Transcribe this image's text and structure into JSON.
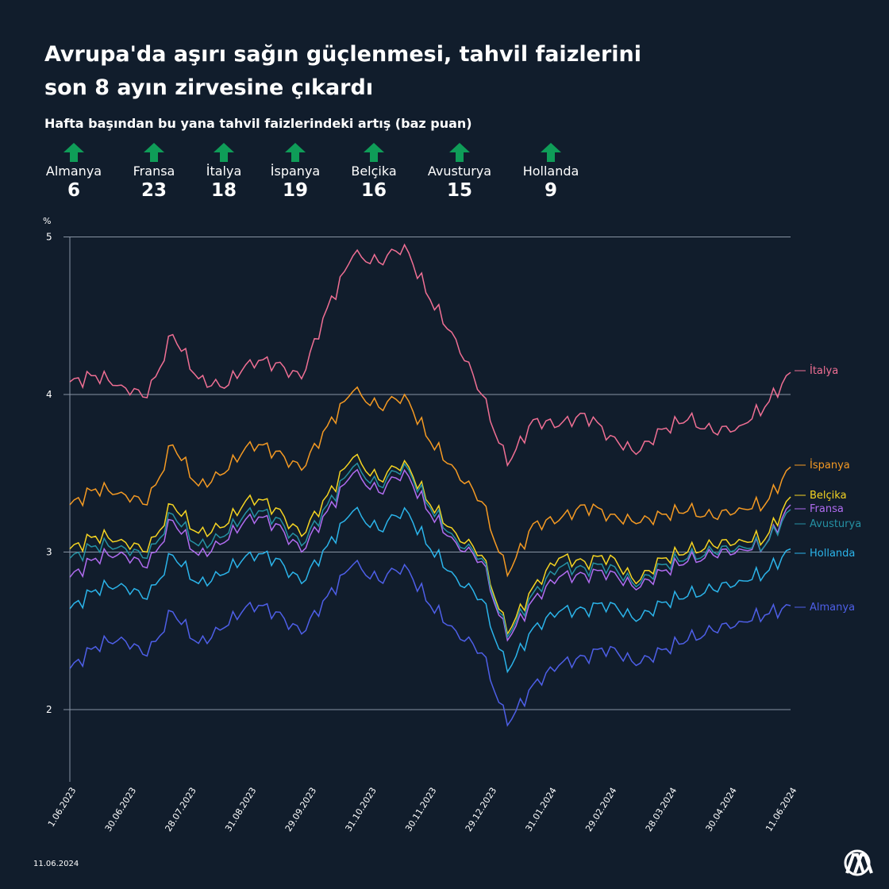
{
  "header": {
    "title_line1": "Avrupa'da aşırı sağın güçlenmesi, tahvil faizlerini",
    "title_line2": "son 8 ayın zirvesine çıkardı",
    "subtitle": "Hafta başından bu yana tahvil faizlerindeki artış (baz puan)"
  },
  "stats": [
    {
      "country": "Almanya",
      "value": "6"
    },
    {
      "country": "Fransa",
      "value": "23"
    },
    {
      "country": "İtalya",
      "value": "18"
    },
    {
      "country": "İspanya",
      "value": "19"
    },
    {
      "country": "Belçika",
      "value": "16"
    },
    {
      "country": "Avusturya",
      "value": "15"
    },
    {
      "country": "Hollanda",
      "value": "9"
    }
  ],
  "colors": {
    "background": "#111d2c",
    "arrow": "#0f9d58",
    "grid": "#8894a3"
  },
  "footer": {
    "date": "11.06.2024",
    "logo_text": "AA"
  },
  "chart_data": {
    "type": "line",
    "title": "Hafta başından bu yana tahvil faizlerindeki artış (baz puan)",
    "ylabel": "%",
    "ylim": [
      1.55,
      5.0
    ],
    "yticks": [
      "2",
      "3",
      "4",
      "5"
    ],
    "grid": true,
    "legend": "right, at line ends",
    "x_tick_labels": [
      "1.06.2023",
      "30.06.2023",
      "28.07.2023",
      "31.08.2023",
      "29.09.2023",
      "31.10.2023",
      "30.11.2023",
      "29.12.2023",
      "31.01.2024",
      "29.02.2024",
      "28.03.2024",
      "30.04.2024",
      "11.06.2024"
    ],
    "series": [
      {
        "name": "İtalya",
        "color": "#f06f94",
        "values": [
          4.08,
          4.12,
          4.06,
          3.98,
          4.38,
          4.1,
          4.04,
          4.22,
          4.2,
          4.1,
          4.55,
          4.88,
          4.84,
          4.95,
          4.6,
          4.35,
          4.0,
          3.55,
          3.84,
          3.8,
          3.88,
          3.74,
          3.62,
          3.78,
          3.84,
          3.76,
          3.8,
          3.92,
          4.14
        ]
      },
      {
        "name": "İspanya",
        "color": "#f59a23",
        "values": [
          3.3,
          3.4,
          3.38,
          3.3,
          3.68,
          3.42,
          3.5,
          3.7,
          3.64,
          3.52,
          3.8,
          4.02,
          3.92,
          4.0,
          3.7,
          3.52,
          3.32,
          2.85,
          3.18,
          3.2,
          3.3,
          3.24,
          3.18,
          3.24,
          3.26,
          3.22,
          3.28,
          3.3,
          3.54
        ]
      },
      {
        "name": "Belçika",
        "color": "#f5d422",
        "values": [
          3.02,
          3.1,
          3.08,
          3.0,
          3.3,
          3.12,
          3.16,
          3.36,
          3.28,
          3.1,
          3.36,
          3.6,
          3.46,
          3.58,
          3.3,
          3.12,
          2.98,
          2.48,
          2.78,
          2.96,
          2.94,
          2.98,
          2.8,
          2.96,
          3.0,
          3.04,
          3.08,
          3.08,
          3.35
        ]
      },
      {
        "name": "Fransa",
        "color": "#b06cf0",
        "values": [
          2.84,
          2.96,
          3.0,
          2.9,
          3.2,
          2.98,
          3.06,
          3.24,
          3.18,
          3.0,
          3.26,
          3.5,
          3.38,
          3.52,
          3.24,
          3.06,
          2.94,
          2.44,
          2.7,
          2.84,
          2.86,
          2.88,
          2.76,
          2.88,
          2.94,
          2.98,
          3.02,
          3.04,
          3.3
        ]
      },
      {
        "name": "Avusturya",
        "color": "#2591a3",
        "values": [
          2.96,
          3.04,
          3.04,
          2.96,
          3.24,
          3.04,
          3.1,
          3.28,
          3.22,
          3.04,
          3.3,
          3.54,
          3.42,
          3.56,
          3.28,
          3.08,
          2.96,
          2.46,
          2.74,
          2.9,
          2.9,
          2.92,
          2.78,
          2.92,
          2.96,
          3.0,
          3.04,
          3.04,
          3.27
        ]
      },
      {
        "name": "Hollanda",
        "color": "#2bb4ea",
        "values": [
          2.64,
          2.76,
          2.8,
          2.7,
          2.98,
          2.8,
          2.86,
          3.0,
          2.96,
          2.8,
          3.04,
          3.26,
          3.14,
          3.28,
          3.02,
          2.84,
          2.7,
          2.24,
          2.52,
          2.62,
          2.64,
          2.68,
          2.56,
          2.68,
          2.72,
          2.76,
          2.82,
          2.86,
          3.02
        ]
      },
      {
        "name": "Almanya",
        "color": "#4e5fe8",
        "values": [
          2.26,
          2.4,
          2.46,
          2.34,
          2.62,
          2.42,
          2.52,
          2.68,
          2.62,
          2.48,
          2.72,
          2.92,
          2.82,
          2.92,
          2.66,
          2.5,
          2.36,
          1.9,
          2.16,
          2.28,
          2.34,
          2.4,
          2.28,
          2.38,
          2.44,
          2.5,
          2.56,
          2.6,
          2.66
        ]
      }
    ]
  }
}
